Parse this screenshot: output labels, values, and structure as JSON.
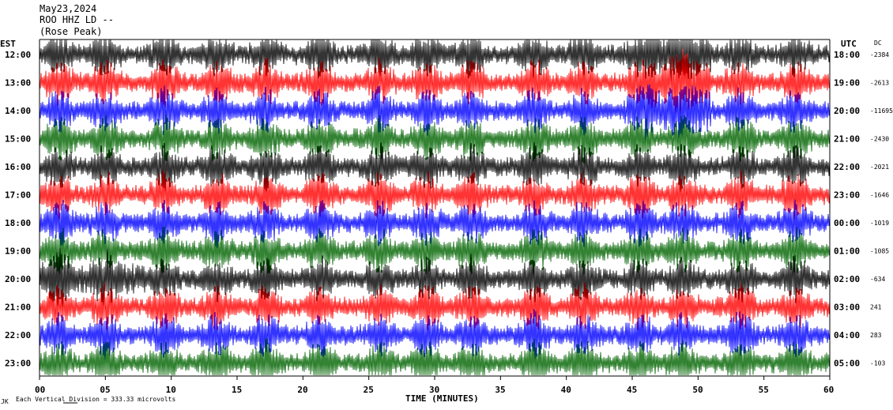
{
  "header": {
    "date": "May23,2024",
    "station": "ROO HHZ LD --",
    "subtitle": "(Rose Peak)"
  },
  "colors": {
    "c0": "#000000",
    "c1": "#ff0000",
    "c2": "#0000ff",
    "c3": "#006400"
  },
  "chart_data": {
    "type": "line",
    "xlabel": "TIME (MINUTES)",
    "x_ticks": [
      "00",
      "05",
      "10",
      "15",
      "20",
      "25",
      "30",
      "35",
      "40",
      "45",
      "50",
      "55",
      "60"
    ],
    "xlim": [
      0,
      60
    ],
    "left_axis_label": "EST",
    "right_axis_label": "UTC",
    "dc_label": "DC",
    "rows_est": [
      "12:00",
      "13:00",
      "14:00",
      "15:00",
      "16:00",
      "17:00",
      "18:00",
      "19:00",
      "20:00",
      "21:00",
      "22:00",
      "23:00"
    ],
    "rows_utc": [
      "18:00",
      "19:00",
      "20:00",
      "21:00",
      "22:00",
      "23:00",
      "00:00",
      "01:00",
      "02:00",
      "03:00",
      "04:00",
      "05:00"
    ],
    "dc_offsets": [
      "-2384",
      "-2613",
      "-11695",
      "-2430",
      "-2021",
      "-1646",
      "-1019",
      "-1085",
      "-634",
      "241",
      "283",
      "-103"
    ],
    "footer": "Each Vertical Division = 333.33 microvolts",
    "footer_mark": "JK"
  }
}
